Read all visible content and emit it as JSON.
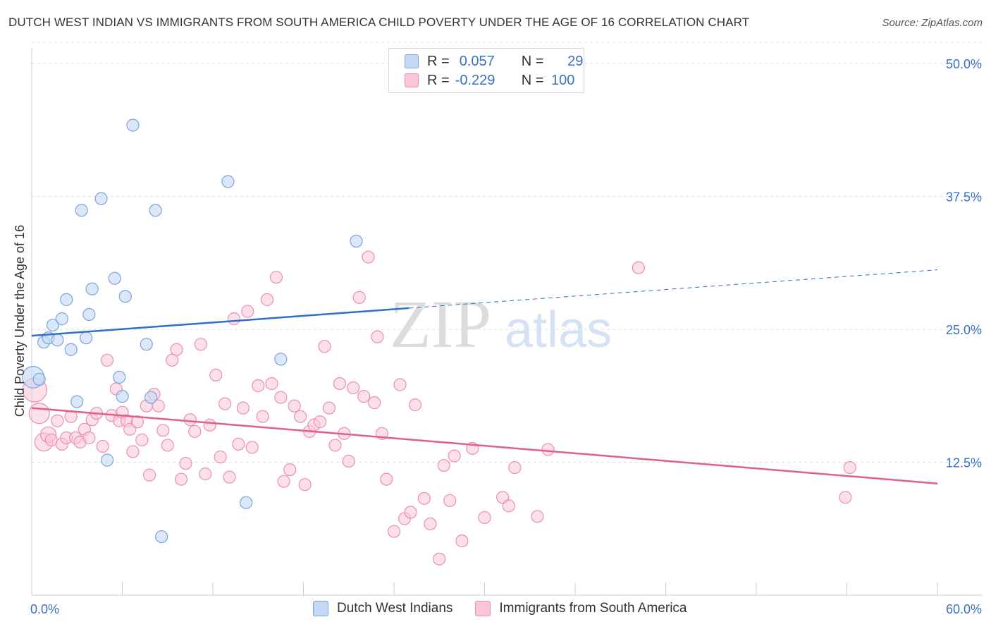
{
  "header": {
    "title": "DUTCH WEST INDIAN VS IMMIGRANTS FROM SOUTH AMERICA CHILD POVERTY UNDER THE AGE OF 16 CORRELATION CHART",
    "source": "Source: ZipAtlas.com"
  },
  "legend": {
    "rows": [
      {
        "r_label": "R =",
        "r_value": "0.057",
        "n_label": "N =",
        "n_value": "29"
      },
      {
        "r_label": "R =",
        "r_value": "-0.229",
        "n_label": "N =",
        "n_value": "100"
      }
    ],
    "bottom": [
      {
        "label": "Dutch West Indians"
      },
      {
        "label": "Immigrants from South America"
      }
    ]
  },
  "colors": {
    "blue_fill": "#c5d8f5",
    "blue_stroke": "#7aa3df",
    "blue_line": "#2f6fca",
    "pink_fill": "#f9c6d5",
    "pink_stroke": "#ec8fae",
    "pink_line": "#e0608c",
    "tick_label": "#3a6fc4",
    "grid": "#dddddd"
  },
  "chart_data": {
    "type": "scatter",
    "title": "DUTCH WEST INDIAN VS IMMIGRANTS FROM SOUTH AMERICA CHILD POVERTY UNDER THE AGE OF 16 CORRELATION CHART",
    "xlabel": "",
    "ylabel": "Child Poverty Under the Age of 16",
    "xlim": [
      0,
      60
    ],
    "ylim": [
      0,
      52
    ],
    "x_tick_labels": [
      "0.0%",
      "60.0%"
    ],
    "y_ticks": [
      12.5,
      25.0,
      37.5,
      50.0
    ],
    "y_tick_labels": [
      "12.5%",
      "25.0%",
      "37.5%",
      "50.0%"
    ],
    "watermark": {
      "part1": "ZIP",
      "part2": "atlas"
    },
    "series": [
      {
        "name": "Dutch West Indians",
        "r": 0.057,
        "n": 29,
        "trend": {
          "x0": 0,
          "y0": 24.4,
          "x1": 25,
          "y1": 27.0,
          "dash_to_x": 60,
          "dash_to_y": 30.6
        },
        "points": [
          {
            "x": 0.1,
            "y": 20.5,
            "s": 1.8
          },
          {
            "x": 0.5,
            "y": 20.3,
            "s": 1
          },
          {
            "x": 0.8,
            "y": 23.8,
            "s": 1
          },
          {
            "x": 1.1,
            "y": 24.2,
            "s": 1
          },
          {
            "x": 1.4,
            "y": 25.4,
            "s": 1
          },
          {
            "x": 1.7,
            "y": 24.0,
            "s": 1
          },
          {
            "x": 2.0,
            "y": 26.0,
            "s": 1
          },
          {
            "x": 2.3,
            "y": 27.8,
            "s": 1
          },
          {
            "x": 2.6,
            "y": 23.1,
            "s": 1
          },
          {
            "x": 3.0,
            "y": 18.2,
            "s": 1
          },
          {
            "x": 3.3,
            "y": 36.2,
            "s": 1
          },
          {
            "x": 3.6,
            "y": 24.2,
            "s": 1
          },
          {
            "x": 3.8,
            "y": 26.4,
            "s": 1
          },
          {
            "x": 4.0,
            "y": 28.8,
            "s": 1
          },
          {
            "x": 4.6,
            "y": 37.3,
            "s": 1
          },
          {
            "x": 5.0,
            "y": 12.7,
            "s": 1
          },
          {
            "x": 5.5,
            "y": 29.8,
            "s": 1
          },
          {
            "x": 5.8,
            "y": 20.5,
            "s": 1
          },
          {
            "x": 6.0,
            "y": 18.7,
            "s": 1
          },
          {
            "x": 6.2,
            "y": 28.1,
            "s": 1
          },
          {
            "x": 6.7,
            "y": 44.2,
            "s": 1
          },
          {
            "x": 7.6,
            "y": 23.6,
            "s": 1
          },
          {
            "x": 7.9,
            "y": 18.6,
            "s": 1
          },
          {
            "x": 8.2,
            "y": 36.2,
            "s": 1
          },
          {
            "x": 8.6,
            "y": 5.5,
            "s": 1
          },
          {
            "x": 13.0,
            "y": 38.9,
            "s": 1
          },
          {
            "x": 14.2,
            "y": 8.7,
            "s": 1
          },
          {
            "x": 16.5,
            "y": 22.2,
            "s": 1
          },
          {
            "x": 21.5,
            "y": 33.3,
            "s": 1
          }
        ]
      },
      {
        "name": "Immigrants from South America",
        "r": -0.229,
        "n": 100,
        "trend": {
          "x0": 0,
          "y0": 17.6,
          "x1": 60,
          "y1": 10.5
        },
        "points": [
          {
            "x": 0.2,
            "y": 19.3,
            "s": 2.0
          },
          {
            "x": 0.5,
            "y": 17.1,
            "s": 1.7
          },
          {
            "x": 0.8,
            "y": 14.4,
            "s": 1.5
          },
          {
            "x": 1.1,
            "y": 15.1,
            "s": 1.3
          },
          {
            "x": 1.3,
            "y": 14.6,
            "s": 1
          },
          {
            "x": 1.7,
            "y": 16.4,
            "s": 1
          },
          {
            "x": 2.0,
            "y": 14.2,
            "s": 1
          },
          {
            "x": 2.3,
            "y": 14.8,
            "s": 1
          },
          {
            "x": 2.6,
            "y": 16.8,
            "s": 1
          },
          {
            "x": 2.9,
            "y": 14.8,
            "s": 1
          },
          {
            "x": 3.2,
            "y": 14.4,
            "s": 1
          },
          {
            "x": 3.5,
            "y": 15.6,
            "s": 1
          },
          {
            "x": 3.8,
            "y": 14.8,
            "s": 1
          },
          {
            "x": 4.0,
            "y": 16.5,
            "s": 1
          },
          {
            "x": 4.3,
            "y": 17.1,
            "s": 1
          },
          {
            "x": 4.7,
            "y": 14.0,
            "s": 1
          },
          {
            "x": 5.0,
            "y": 22.1,
            "s": 1
          },
          {
            "x": 5.3,
            "y": 16.9,
            "s": 1
          },
          {
            "x": 5.6,
            "y": 19.4,
            "s": 1
          },
          {
            "x": 5.8,
            "y": 16.4,
            "s": 1
          },
          {
            "x": 6.0,
            "y": 17.2,
            "s": 1
          },
          {
            "x": 6.3,
            "y": 16.4,
            "s": 1
          },
          {
            "x": 6.5,
            "y": 15.6,
            "s": 1
          },
          {
            "x": 6.7,
            "y": 13.5,
            "s": 1
          },
          {
            "x": 7.0,
            "y": 16.3,
            "s": 1
          },
          {
            "x": 7.3,
            "y": 14.6,
            "s": 1
          },
          {
            "x": 7.6,
            "y": 17.8,
            "s": 1
          },
          {
            "x": 7.8,
            "y": 11.3,
            "s": 1
          },
          {
            "x": 8.1,
            "y": 18.9,
            "s": 1
          },
          {
            "x": 8.4,
            "y": 17.8,
            "s": 1
          },
          {
            "x": 8.7,
            "y": 15.5,
            "s": 1
          },
          {
            "x": 9.0,
            "y": 14.1,
            "s": 1
          },
          {
            "x": 9.3,
            "y": 22.1,
            "s": 1
          },
          {
            "x": 9.6,
            "y": 23.1,
            "s": 1
          },
          {
            "x": 9.9,
            "y": 10.9,
            "s": 1
          },
          {
            "x": 10.2,
            "y": 12.4,
            "s": 1
          },
          {
            "x": 10.5,
            "y": 16.5,
            "s": 1
          },
          {
            "x": 10.8,
            "y": 15.4,
            "s": 1
          },
          {
            "x": 11.2,
            "y": 23.6,
            "s": 1
          },
          {
            "x": 11.5,
            "y": 11.4,
            "s": 1
          },
          {
            "x": 11.8,
            "y": 16.0,
            "s": 1
          },
          {
            "x": 12.2,
            "y": 20.7,
            "s": 1
          },
          {
            "x": 12.5,
            "y": 13.0,
            "s": 1
          },
          {
            "x": 12.8,
            "y": 18.0,
            "s": 1
          },
          {
            "x": 13.1,
            "y": 11.1,
            "s": 1
          },
          {
            "x": 13.4,
            "y": 26.0,
            "s": 1
          },
          {
            "x": 13.7,
            "y": 14.2,
            "s": 1
          },
          {
            "x": 14.0,
            "y": 17.6,
            "s": 1
          },
          {
            "x": 14.3,
            "y": 26.7,
            "s": 1
          },
          {
            "x": 14.6,
            "y": 13.9,
            "s": 1
          },
          {
            "x": 15.0,
            "y": 19.7,
            "s": 1
          },
          {
            "x": 15.3,
            "y": 16.8,
            "s": 1
          },
          {
            "x": 15.6,
            "y": 27.8,
            "s": 1
          },
          {
            "x": 15.9,
            "y": 19.9,
            "s": 1
          },
          {
            "x": 16.2,
            "y": 29.9,
            "s": 1
          },
          {
            "x": 16.5,
            "y": 18.6,
            "s": 1
          },
          {
            "x": 16.7,
            "y": 10.7,
            "s": 1
          },
          {
            "x": 17.1,
            "y": 11.8,
            "s": 1
          },
          {
            "x": 17.4,
            "y": 17.8,
            "s": 1
          },
          {
            "x": 17.8,
            "y": 16.8,
            "s": 1
          },
          {
            "x": 18.1,
            "y": 10.4,
            "s": 1
          },
          {
            "x": 18.4,
            "y": 15.4,
            "s": 1
          },
          {
            "x": 18.7,
            "y": 16.0,
            "s": 1
          },
          {
            "x": 19.1,
            "y": 16.3,
            "s": 1
          },
          {
            "x": 19.4,
            "y": 23.4,
            "s": 1
          },
          {
            "x": 19.7,
            "y": 17.6,
            "s": 1
          },
          {
            "x": 20.1,
            "y": 14.1,
            "s": 1
          },
          {
            "x": 20.4,
            "y": 19.9,
            "s": 1
          },
          {
            "x": 20.7,
            "y": 15.2,
            "s": 1
          },
          {
            "x": 21.0,
            "y": 12.6,
            "s": 1
          },
          {
            "x": 21.3,
            "y": 19.5,
            "s": 1
          },
          {
            "x": 21.7,
            "y": 28.0,
            "s": 1
          },
          {
            "x": 22.0,
            "y": 18.7,
            "s": 1
          },
          {
            "x": 22.3,
            "y": 31.8,
            "s": 1
          },
          {
            "x": 22.7,
            "y": 18.1,
            "s": 1
          },
          {
            "x": 22.9,
            "y": 24.3,
            "s": 1
          },
          {
            "x": 23.2,
            "y": 15.2,
            "s": 1
          },
          {
            "x": 23.5,
            "y": 10.9,
            "s": 1
          },
          {
            "x": 24.0,
            "y": 6.0,
            "s": 1
          },
          {
            "x": 24.4,
            "y": 19.8,
            "s": 1
          },
          {
            "x": 24.7,
            "y": 7.2,
            "s": 1
          },
          {
            "x": 25.1,
            "y": 7.8,
            "s": 1
          },
          {
            "x": 25.4,
            "y": 17.9,
            "s": 1
          },
          {
            "x": 26.0,
            "y": 9.1,
            "s": 1
          },
          {
            "x": 26.4,
            "y": 6.7,
            "s": 1
          },
          {
            "x": 27.0,
            "y": 3.4,
            "s": 1
          },
          {
            "x": 27.3,
            "y": 12.2,
            "s": 1
          },
          {
            "x": 27.7,
            "y": 8.9,
            "s": 1
          },
          {
            "x": 28.0,
            "y": 13.1,
            "s": 1
          },
          {
            "x": 28.5,
            "y": 5.1,
            "s": 1
          },
          {
            "x": 29.2,
            "y": 13.8,
            "s": 1
          },
          {
            "x": 30.0,
            "y": 7.3,
            "s": 1
          },
          {
            "x": 31.2,
            "y": 9.2,
            "s": 1
          },
          {
            "x": 32.0,
            "y": 12.0,
            "s": 1
          },
          {
            "x": 33.5,
            "y": 7.4,
            "s": 1
          },
          {
            "x": 34.2,
            "y": 13.7,
            "s": 1
          },
          {
            "x": 40.2,
            "y": 30.8,
            "s": 1
          },
          {
            "x": 54.2,
            "y": 12.0,
            "s": 1
          },
          {
            "x": 53.9,
            "y": 9.2,
            "s": 1
          },
          {
            "x": 31.6,
            "y": 8.4,
            "s": 1
          }
        ]
      }
    ]
  }
}
